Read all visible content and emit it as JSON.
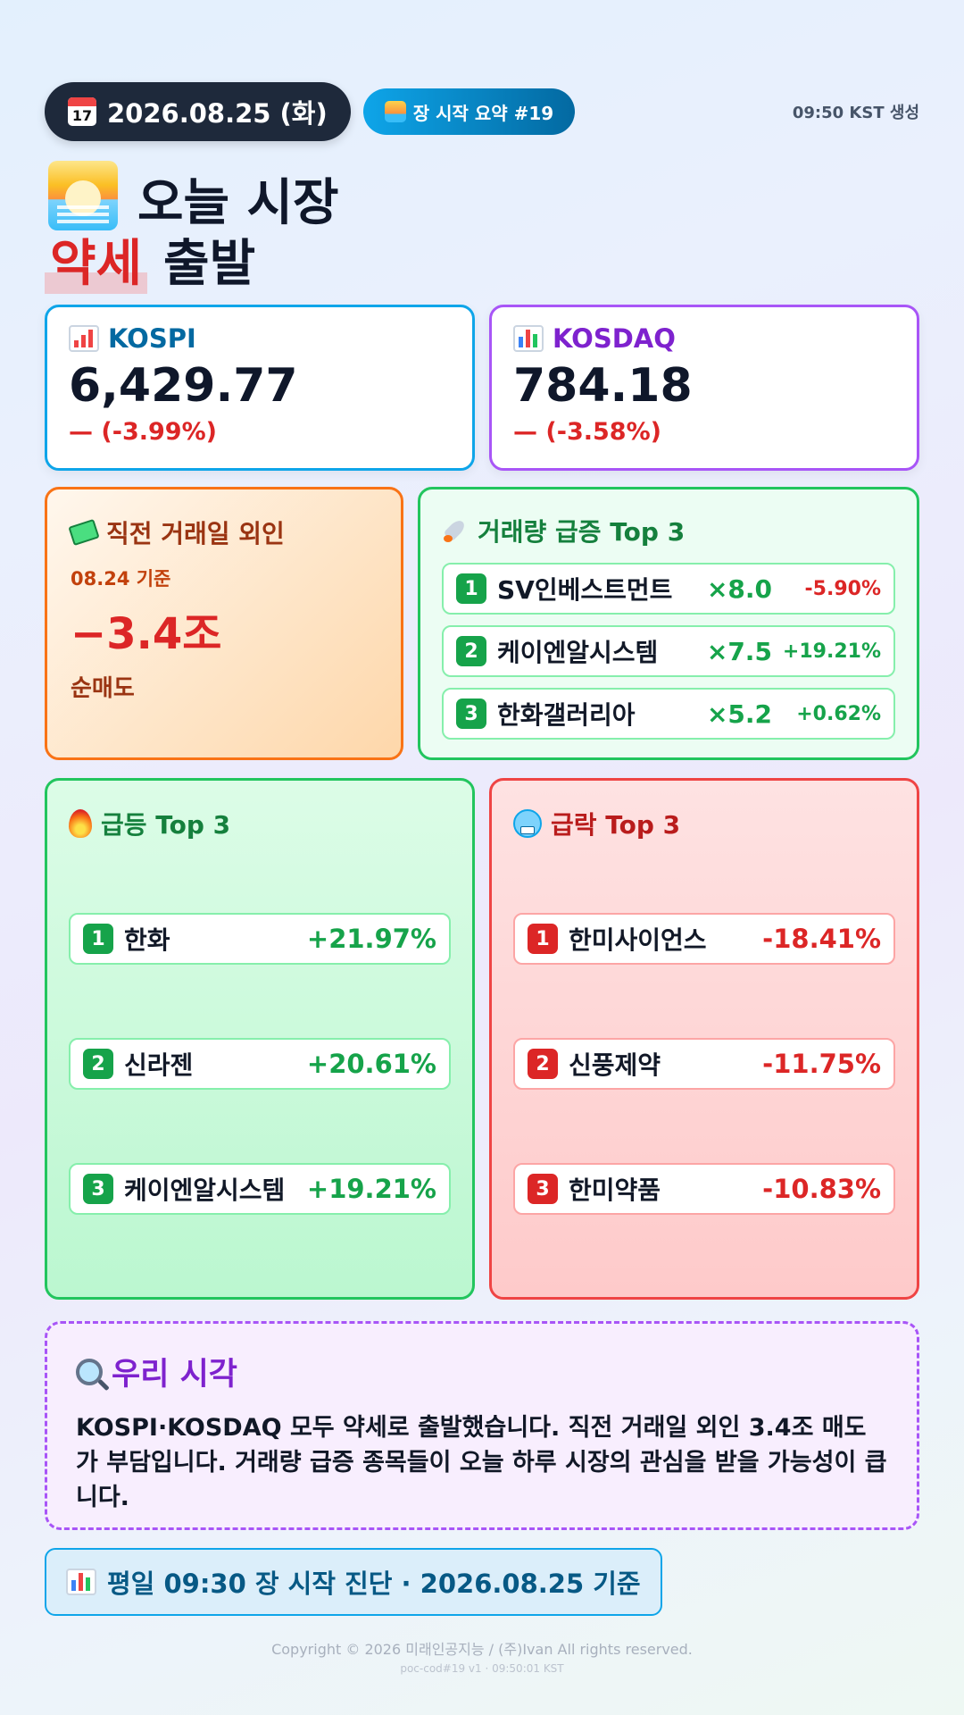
{
  "header": {
    "date": "2026.08.25 (화)",
    "calendar_icon_text": "17",
    "summary_label": "장 시작 요약 #19",
    "generated": "09:50 KST 생성"
  },
  "title": {
    "line1": "오늘 시장",
    "highlight": "약세",
    "rest": "출발"
  },
  "indices": {
    "kospi": {
      "label": "KOSPI",
      "value": "6,429.77",
      "change": "— (-3.99%)"
    },
    "kosdaq": {
      "label": "KOSDAQ",
      "value": "784.18",
      "change": "— (-3.58%)"
    }
  },
  "foreign": {
    "title": "직전 거래일 외인",
    "basis": "08.24 기준",
    "value": "−3.4조",
    "note": "순매도"
  },
  "volume": {
    "title": "거래량 급증 Top 3",
    "items": [
      {
        "rank": "1",
        "name": "SV인베스트먼트",
        "mult": "×8.0",
        "pct": "-5.90%"
      },
      {
        "rank": "2",
        "name": "케이엔알시스템",
        "mult": "×7.5",
        "pct": "+19.21%"
      },
      {
        "rank": "3",
        "name": "한화갤러리아",
        "mult": "×5.2",
        "pct": "+0.62%"
      }
    ]
  },
  "gainers": {
    "title": "급등 Top 3",
    "items": [
      {
        "rank": "1",
        "name": "한화",
        "pct": "+21.97%"
      },
      {
        "rank": "2",
        "name": "신라젠",
        "pct": "+20.61%"
      },
      {
        "rank": "3",
        "name": "케이엔알시스템",
        "pct": "+19.21%"
      }
    ]
  },
  "losers": {
    "title": "급락 Top 3",
    "items": [
      {
        "rank": "1",
        "name": "한미사이언스",
        "pct": "-18.41%"
      },
      {
        "rank": "2",
        "name": "신풍제약",
        "pct": "-11.75%"
      },
      {
        "rank": "3",
        "name": "한미약품",
        "pct": "-10.83%"
      }
    ]
  },
  "view": {
    "title": "우리 시각",
    "text": "KOSPI·KOSDAQ 모두 약세로 출발했습니다. 직전 거래일 외인 3.4조 매도가 부담입니다. 거래량 급증 종목들이 오늘 하루 시장의 관심을 받을 가능성이 큽니다."
  },
  "footer": {
    "diagnosis": "평일 09:30 장 시작 진단 · 2026.08.25 기준",
    "copyright": "Copyright © 2026 미래인공지능 / (주)Ivan All rights reserved.",
    "build": "poc-cod#19 v1 · 09:50:01 KST"
  },
  "colors": {
    "positive": "#16a34a",
    "negative": "#dc2626",
    "kospi_accent": "#0ea5e9",
    "kosdaq_accent": "#a855f7"
  }
}
